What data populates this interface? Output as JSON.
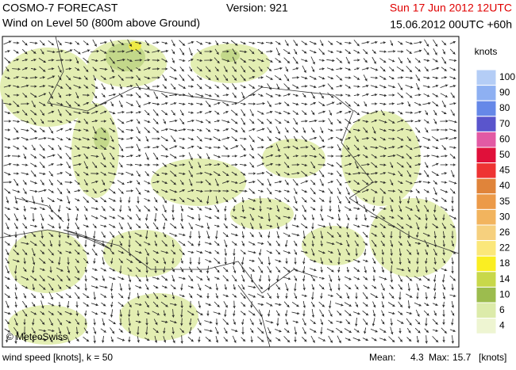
{
  "header": {
    "title": "COSMO-7 FORECAST",
    "subtitle": "Wind on Level 50 (800m above Ground)",
    "version": "Version: 921",
    "valid_time": "Sun 17 Jun 2012 12UTC",
    "run_time": "15.06.2012 00UTC +60h"
  },
  "map": {
    "credit": "© MeteoSwiss"
  },
  "legend": {
    "title": "knots",
    "levels": [
      {
        "label": 100,
        "color": "#b4cdf6"
      },
      {
        "label": 90,
        "color": "#8eb0f2"
      },
      {
        "label": 80,
        "color": "#6688e8"
      },
      {
        "label": 70,
        "color": "#5a55cc"
      },
      {
        "label": 60,
        "color": "#e25aa4"
      },
      {
        "label": 50,
        "color": "#e0103a"
      },
      {
        "label": 45,
        "color": "#ee3333"
      },
      {
        "label": 40,
        "color": "#e0843a"
      },
      {
        "label": 35,
        "color": "#ec9a48"
      },
      {
        "label": 30,
        "color": "#f2b45e"
      },
      {
        "label": 26,
        "color": "#f6d07e"
      },
      {
        "label": 22,
        "color": "#fbe77a"
      },
      {
        "label": 18,
        "color": "#faee22"
      },
      {
        "label": 14,
        "color": "#c8d84a"
      },
      {
        "label": 10,
        "color": "#9cbc4e"
      },
      {
        "label": 6,
        "color": "#dcebaa"
      },
      {
        "label": 4,
        "color": "#eef5d2"
      }
    ]
  },
  "footer": {
    "description": "wind speed [knots], k = 50",
    "mean_label": "Mean:",
    "mean": 4.3,
    "max_label": "Max:",
    "max": 15.7,
    "unit": "[knots]"
  }
}
